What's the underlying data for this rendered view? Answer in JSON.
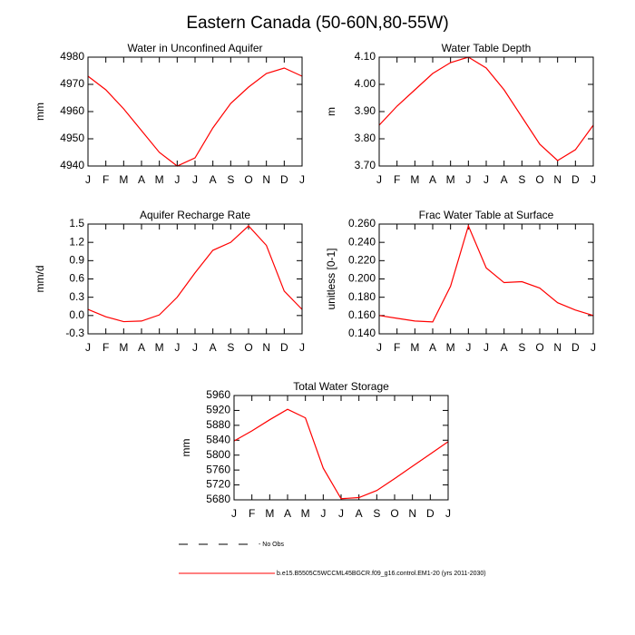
{
  "title": "Eastern Canada (50-60N,80-55W)",
  "legend": [
    {
      "label": "No Obs",
      "color": "#000000",
      "dashed": true
    },
    {
      "label": "b.e15.B5505C5WCCML45BGCR.f09_g16.control.EM1-20 (yrs 2011-2030)",
      "color": "#ff0000",
      "dashed": false
    }
  ],
  "chart_data": [
    {
      "type": "line",
      "title": "Water in Unconfined Aquifer",
      "y_label": "mm",
      "color": "#ff0000",
      "categories": [
        "J",
        "F",
        "M",
        "A",
        "M",
        "J",
        "J",
        "A",
        "S",
        "O",
        "N",
        "D",
        "J"
      ],
      "values": [
        4973,
        4968,
        4961,
        4953,
        4945,
        4940,
        4943,
        4954,
        4963,
        4969,
        4974,
        4976,
        4973
      ],
      "ylim": [
        4940,
        4980
      ],
      "yticks": [
        4940,
        4950,
        4960,
        4970,
        4980
      ]
    },
    {
      "type": "line",
      "title": "Water Table Depth",
      "y_label": "m",
      "color": "#ff0000",
      "categories": [
        "J",
        "F",
        "M",
        "A",
        "M",
        "J",
        "J",
        "A",
        "S",
        "O",
        "N",
        "D",
        "J"
      ],
      "values": [
        3.85,
        3.92,
        3.98,
        4.04,
        4.08,
        4.1,
        4.06,
        3.98,
        3.88,
        3.78,
        3.72,
        3.76,
        3.85
      ],
      "ylim": [
        3.7,
        4.1
      ],
      "yticks": [
        {
          "value": 3.7,
          "label": "3.70"
        },
        {
          "value": 3.8,
          "label": "3.80"
        },
        {
          "value": 3.9,
          "label": "3.90"
        },
        {
          "value": 4.0,
          "label": "4.00"
        },
        {
          "value": 4.1,
          "label": "4.10"
        }
      ]
    },
    {
      "type": "line",
      "title": "Aquifer Recharge Rate",
      "y_label": "mm/d",
      "color": "#ff0000",
      "categories": [
        "J",
        "F",
        "M",
        "A",
        "M",
        "J",
        "J",
        "A",
        "S",
        "O",
        "N",
        "D",
        "J"
      ],
      "values": [
        0.1,
        -0.02,
        -0.1,
        -0.09,
        0.01,
        0.3,
        0.7,
        1.07,
        1.2,
        1.47,
        1.15,
        0.4,
        0.1
      ],
      "ylim": [
        -0.3,
        1.5
      ],
      "yticks": [
        -0.3,
        {
          "value": 0,
          "label": "0.0"
        },
        0.3,
        0.6,
        0.9,
        1.2,
        1.5
      ]
    },
    {
      "type": "line",
      "title": "Frac Water Table at Surface",
      "y_label": "unitless [0-1]",
      "color": "#ff0000",
      "categories": [
        "J",
        "F",
        "M",
        "A",
        "M",
        "J",
        "J",
        "A",
        "S",
        "O",
        "N",
        "D",
        "J"
      ],
      "values": [
        0.16,
        0.157,
        0.154,
        0.153,
        0.192,
        0.258,
        0.212,
        0.196,
        0.197,
        0.19,
        0.174,
        0.166,
        0.16
      ],
      "ylim": [
        0.14,
        0.26
      ],
      "yticks": [
        {
          "value": 0.14,
          "label": "0.140"
        },
        {
          "value": 0.16,
          "label": "0.160"
        },
        {
          "value": 0.18,
          "label": "0.180"
        },
        {
          "value": 0.2,
          "label": "0.200"
        },
        {
          "value": 0.22,
          "label": "0.220"
        },
        {
          "value": 0.24,
          "label": "0.240"
        },
        {
          "value": 0.26,
          "label": "0.260"
        }
      ]
    },
    {
      "type": "line",
      "title": "Total Water Storage",
      "y_label": "mm",
      "color": "#ff0000",
      "categories": [
        "J",
        "F",
        "M",
        "A",
        "M",
        "J",
        "J",
        "A",
        "S",
        "O",
        "N",
        "D",
        "J"
      ],
      "values": [
        5838,
        5865,
        5895,
        5923,
        5900,
        5765,
        5683,
        5686,
        5705,
        5737,
        5770,
        5803,
        5836
      ],
      "ylim": [
        5680,
        5960
      ],
      "yticks": [
        5680,
        5720,
        5760,
        5800,
        5840,
        5880,
        5920,
        5960
      ]
    }
  ]
}
